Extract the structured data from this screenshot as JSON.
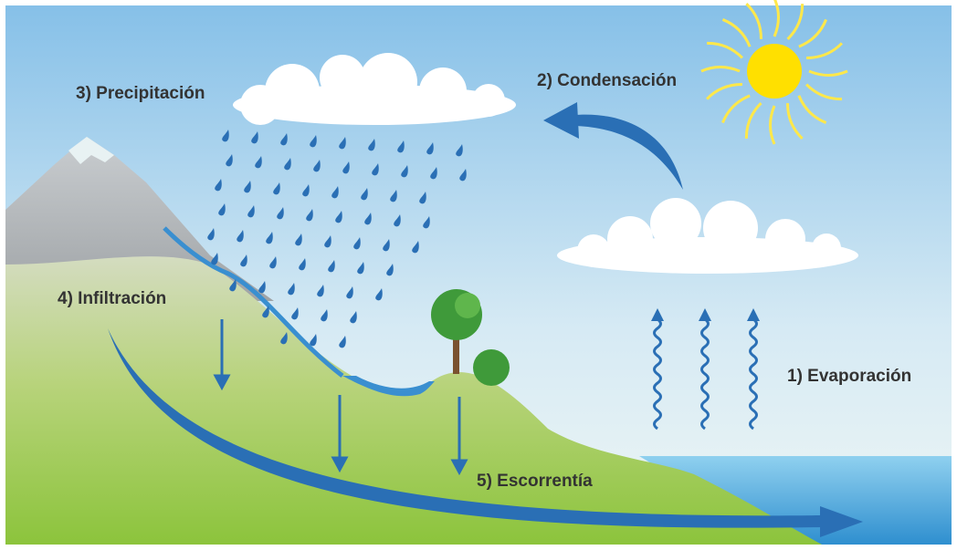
{
  "labels": {
    "precipitation": "3) Precipitación",
    "condensation": "2) Condensación",
    "infiltration": "4) Infiltración",
    "evaporation": "1) Evaporación",
    "runoff": "5) Escorrentía"
  }
}
